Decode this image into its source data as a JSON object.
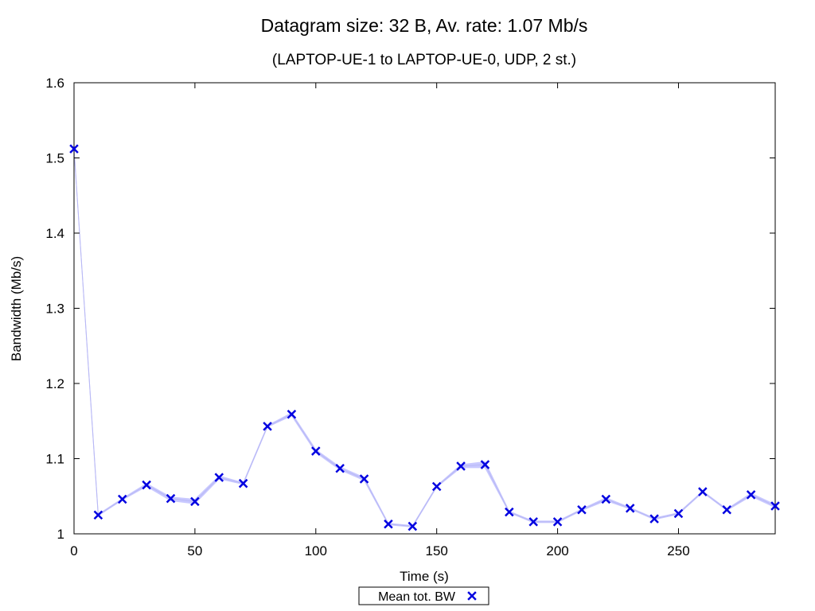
{
  "chart_data": {
    "type": "line",
    "title": "Datagram size: 32 B, Av. rate: 1.07 Mb/s",
    "subtitle": "(LAPTOP-UE-1 to LAPTOP-UE-0, UDP, 2 st.)",
    "xlabel": "Time (s)",
    "ylabel": "Bandwidth (Mb/s)",
    "xlim": [
      0,
      290
    ],
    "ylim": [
      1.0,
      1.6
    ],
    "xticks": [
      0,
      50,
      100,
      150,
      200,
      250
    ],
    "xtick_labels": [
      "0",
      "50",
      "100",
      "150",
      "200",
      "250"
    ],
    "yticks": [
      1.0,
      1.1,
      1.2,
      1.3,
      1.4,
      1.5,
      1.6
    ],
    "ytick_labels": [
      "1",
      "1.1",
      "1.2",
      "1.3",
      "1.4",
      "1.5",
      "1.6"
    ],
    "grid": false,
    "legend_position": "bottom-center",
    "series": [
      {
        "name": "Mean tot. BW",
        "color": "#0000e0",
        "band_color": "#c8c8ff",
        "marker": "x",
        "x": [
          0,
          10,
          20,
          30,
          40,
          50,
          60,
          70,
          80,
          90,
          100,
          110,
          120,
          130,
          140,
          150,
          160,
          170,
          180,
          190,
          200,
          210,
          220,
          230,
          240,
          250,
          260,
          270,
          280,
          290
        ],
        "y": [
          1.512,
          1.025,
          1.046,
          1.065,
          1.047,
          1.043,
          1.075,
          1.067,
          1.143,
          1.159,
          1.11,
          1.087,
          1.073,
          1.013,
          1.01,
          1.063,
          1.09,
          1.092,
          1.029,
          1.016,
          1.016,
          1.032,
          1.046,
          1.034,
          1.02,
          1.027,
          1.056,
          1.032,
          1.052,
          1.037
        ],
        "y_low": [
          1.512,
          1.024,
          1.045,
          1.063,
          1.044,
          1.04,
          1.073,
          1.066,
          1.142,
          1.157,
          1.108,
          1.085,
          1.071,
          1.012,
          1.009,
          1.062,
          1.088,
          1.088,
          1.028,
          1.015,
          1.015,
          1.031,
          1.044,
          1.033,
          1.019,
          1.026,
          1.055,
          1.031,
          1.05,
          1.035
        ],
        "y_high": [
          1.512,
          1.026,
          1.047,
          1.067,
          1.049,
          1.046,
          1.077,
          1.068,
          1.144,
          1.161,
          1.112,
          1.089,
          1.075,
          1.014,
          1.011,
          1.064,
          1.092,
          1.096,
          1.03,
          1.017,
          1.017,
          1.033,
          1.048,
          1.035,
          1.021,
          1.028,
          1.057,
          1.033,
          1.054,
          1.039
        ]
      }
    ]
  }
}
